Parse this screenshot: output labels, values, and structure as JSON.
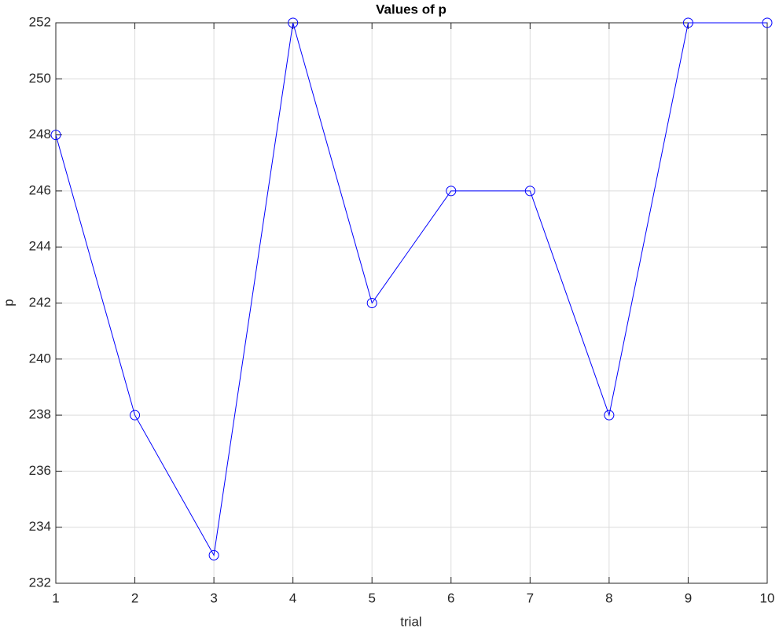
{
  "chart_data": {
    "type": "line",
    "title": "Values of p",
    "x_label": "trial",
    "y_label": "p",
    "x": [
      1,
      2,
      3,
      4,
      5,
      6,
      7,
      8,
      9,
      10
    ],
    "series": [
      {
        "name": "p",
        "color": "#0000ff",
        "marker": "circle",
        "values": [
          248,
          238,
          233,
          252,
          242,
          246,
          246,
          238,
          252,
          252
        ]
      }
    ],
    "xlim": [
      1,
      10
    ],
    "xticks": [
      1,
      2,
      3,
      4,
      5,
      6,
      7,
      8,
      9,
      10
    ],
    "ylim": [
      232,
      252
    ],
    "yticks": [
      232,
      234,
      236,
      238,
      240,
      242,
      244,
      246,
      248,
      250,
      252
    ],
    "grid": true
  }
}
